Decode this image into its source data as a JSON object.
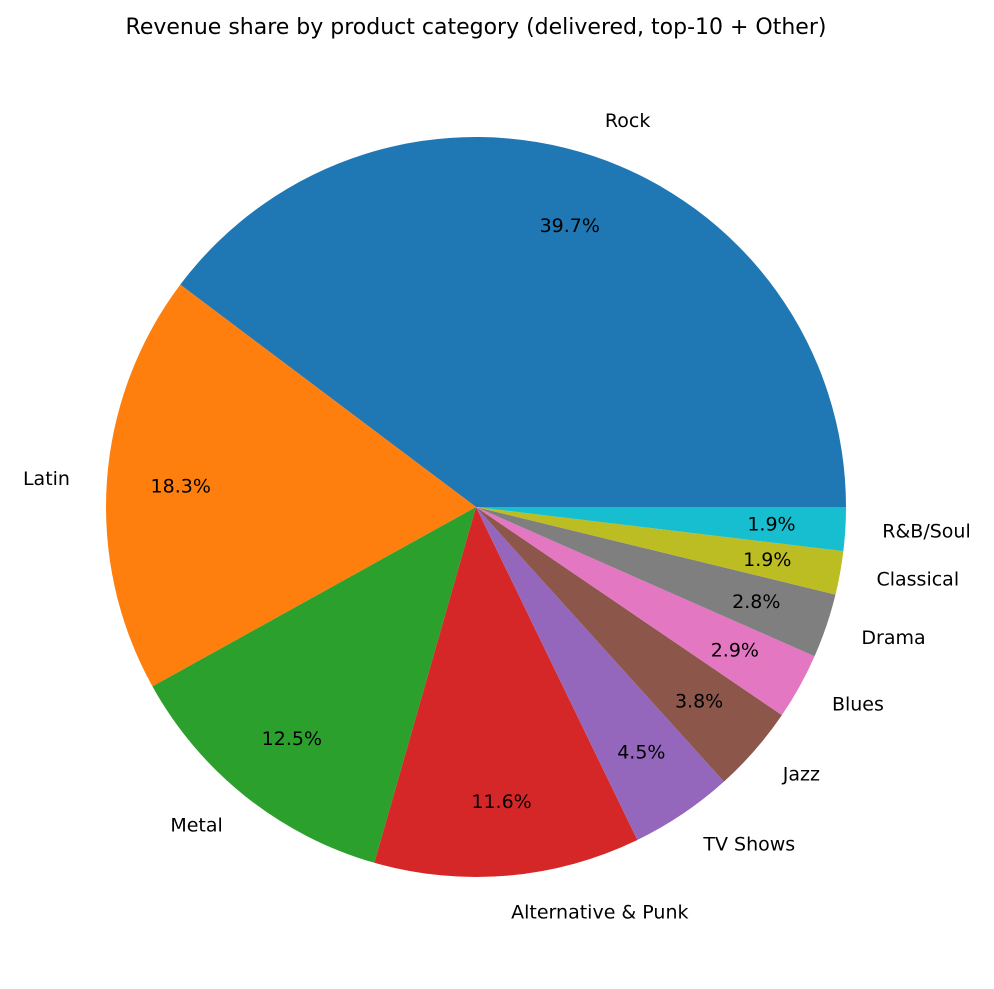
{
  "chart_data": {
    "type": "pie",
    "title": "Revenue share by product category (delivered, top-10 + Other)",
    "slices": [
      {
        "label": "Rock",
        "pct_label": "39.7%",
        "value": 39.7,
        "color": "#1f77b4"
      },
      {
        "label": "Latin",
        "pct_label": "18.3%",
        "value": 18.3,
        "color": "#ff7f0e"
      },
      {
        "label": "Metal",
        "pct_label": "12.5%",
        "value": 12.5,
        "color": "#2ca02c"
      },
      {
        "label": "Alternative & Punk",
        "pct_label": "11.6%",
        "value": 11.6,
        "color": "#d62728"
      },
      {
        "label": "TV Shows",
        "pct_label": "4.5%",
        "value": 4.5,
        "color": "#9467bd"
      },
      {
        "label": "Jazz",
        "pct_label": "3.8%",
        "value": 3.8,
        "color": "#8c564b"
      },
      {
        "label": "Blues",
        "pct_label": "2.9%",
        "value": 2.9,
        "color": "#e377c2"
      },
      {
        "label": "Drama",
        "pct_label": "2.8%",
        "value": 2.8,
        "color": "#7f7f7f"
      },
      {
        "label": "Classical",
        "pct_label": "1.9%",
        "value": 1.9,
        "color": "#bcbd22"
      },
      {
        "label": "R&B/Soul",
        "pct_label": "1.9%",
        "value": 1.9,
        "color": "#17becf"
      }
    ],
    "start_angle_deg": 0,
    "direction": "counterclockwise",
    "legend": "none"
  }
}
